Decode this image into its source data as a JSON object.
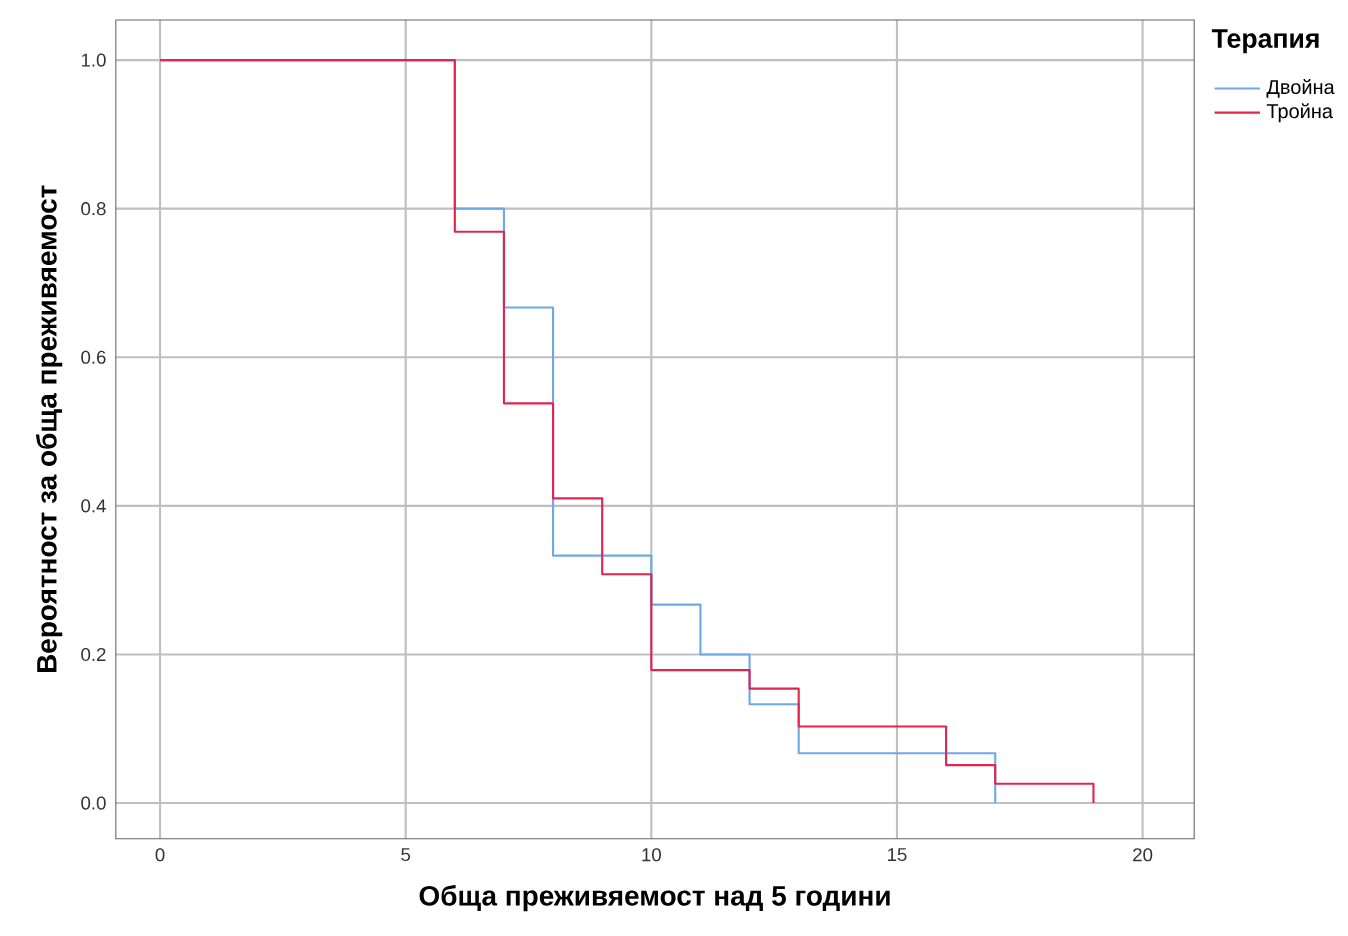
{
  "chart_data": {
    "type": "step",
    "xlabel": "Обща преживяемост над 5 години",
    "ylabel": "Вероятност за обща преживяемост",
    "legend_title": "Терапия",
    "series": [
      {
        "name": "Двойна",
        "color": "#6fa8e8",
        "x": [
          0,
          6,
          7,
          8,
          10,
          11,
          12,
          13,
          17
        ],
        "values": [
          1,
          0.8,
          0.667,
          0.333,
          0.267,
          0.2,
          0.133,
          0.067,
          0
        ]
      },
      {
        "name": "Тройна",
        "color": "#e0264f",
        "x": [
          0,
          6,
          7,
          8,
          9,
          10,
          12,
          13,
          16,
          17,
          19
        ],
        "values": [
          1,
          0.769,
          0.538,
          0.41,
          0.308,
          0.179,
          0.154,
          0.103,
          0.051,
          0.026,
          0
        ]
      }
    ],
    "xlim": [
      -0.9,
      21.05
    ],
    "ylim": [
      -0.048,
      1.054
    ],
    "xticks": [
      0,
      5,
      10,
      15,
      20
    ],
    "yticks": [
      {
        "value": 0,
        "label": "0.0"
      },
      {
        "value": 0.2,
        "label": "0.2"
      },
      {
        "value": 0.4,
        "label": "0.4"
      },
      {
        "value": 0.6,
        "label": "0.6"
      },
      {
        "value": 0.8,
        "label": "0.8"
      },
      {
        "value": 1,
        "label": "1.0"
      }
    ],
    "grid": true,
    "legend": "top right"
  }
}
